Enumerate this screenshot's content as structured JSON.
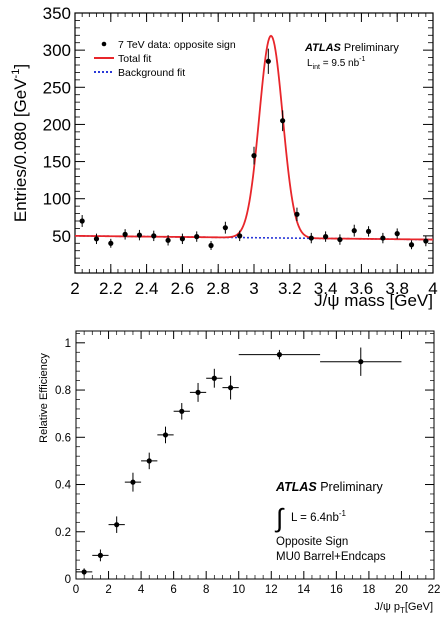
{
  "chart_data": [
    {
      "type": "scatter",
      "ylabel_main": "Entries/0.080 [GeV",
      "ylabel_sup": "-1",
      "ylabel_close": "]",
      "xlabel": "J/ψ mass [GeV]",
      "xlim": [
        2,
        4
      ],
      "ylim": [
        0,
        350
      ],
      "x_ticks": [
        "2",
        "2.2",
        "2.4",
        "2.6",
        "2.8",
        "3",
        "3.2",
        "3.4",
        "3.6",
        "3.8",
        "4"
      ],
      "y_ticks": [
        "50",
        "100",
        "150",
        "200",
        "250",
        "300",
        "350"
      ],
      "legend_position": "top-left",
      "legend": [
        {
          "label": "7 TeV data: opposite sign",
          "style": "marker",
          "color": "#000000"
        },
        {
          "label": "Total  fit",
          "style": "line",
          "color": "#e8262b"
        },
        {
          "label": "Background fit",
          "style": "dotted",
          "color": "#2a39d8"
        }
      ],
      "atlas_label": {
        "bold": "ATLAS",
        "rest": " Preliminary",
        "lumi_text": "L",
        "lumi_sub": "int",
        "lumi_value": " = 9.5 nb",
        "lumi_sup": "-1"
      },
      "series": [
        {
          "kind": "points",
          "x": [
            2.04,
            2.12,
            2.2,
            2.28,
            2.36,
            2.44,
            2.52,
            2.6,
            2.68,
            2.76,
            2.84,
            2.92,
            3.0,
            3.08,
            3.16,
            3.24,
            3.32,
            3.4,
            3.48,
            3.56,
            3.64,
            3.72,
            3.8,
            3.88,
            3.96
          ],
          "y": [
            70,
            46,
            40,
            52,
            51,
            50,
            44,
            46,
            49,
            37,
            61,
            50,
            158,
            285,
            205,
            79,
            47,
            49,
            45,
            57,
            56,
            47,
            53,
            38,
            43
          ],
          "yerr": [
            8,
            7,
            6,
            7,
            7,
            7,
            7,
            7,
            7,
            6,
            8,
            7,
            12,
            17,
            14,
            9,
            7,
            7,
            7,
            8,
            7,
            7,
            7,
            6,
            7
          ]
        },
        {
          "kind": "line",
          "name": "Total  fit",
          "background": [
            50,
            45
          ],
          "peak": {
            "mean": 3.095,
            "sigma": 0.065,
            "amplitude": 272
          }
        },
        {
          "kind": "line",
          "name": "Background fit",
          "background": [
            50,
            45
          ]
        }
      ]
    },
    {
      "type": "scatter",
      "ylabel": "Relative Efficiency",
      "xlabel": "J/ψ p",
      "xlabel_sub": "T",
      "xlabel_unit": "[GeV]",
      "xlim": [
        0,
        22
      ],
      "ylim": [
        0,
        1.05
      ],
      "x_ticks": [
        "0",
        "2",
        "4",
        "6",
        "8",
        "10",
        "12",
        "14",
        "16",
        "18",
        "20",
        "22"
      ],
      "y_ticks": [
        "0",
        "0.2",
        "0.4",
        "0.6",
        "0.8",
        "1"
      ],
      "atlas_label": {
        "bold": "ATLAS",
        "rest": " Preliminary",
        "integral_text": "L = 6.4nb",
        "integral_sup": "-1",
        "line3": "Opposite Sign",
        "line4": "MU0 Barrel+Endcaps"
      },
      "series": [
        {
          "kind": "points",
          "x": [
            0.5,
            1.5,
            2.5,
            3.5,
            4.5,
            5.5,
            6.5,
            7.5,
            8.5,
            9.5,
            12.5,
            17.5
          ],
          "xerr": [
            0.5,
            0.5,
            0.5,
            0.5,
            0.5,
            0.5,
            0.5,
            0.5,
            0.5,
            0.5,
            2.5,
            2.5
          ],
          "y": [
            0.03,
            0.1,
            0.23,
            0.41,
            0.5,
            0.61,
            0.71,
            0.79,
            0.85,
            0.81,
            0.95,
            0.92
          ],
          "yerr": [
            0.015,
            0.025,
            0.035,
            0.04,
            0.035,
            0.035,
            0.035,
            0.04,
            0.04,
            0.05,
            0.02,
            0.06
          ]
        }
      ]
    }
  ]
}
